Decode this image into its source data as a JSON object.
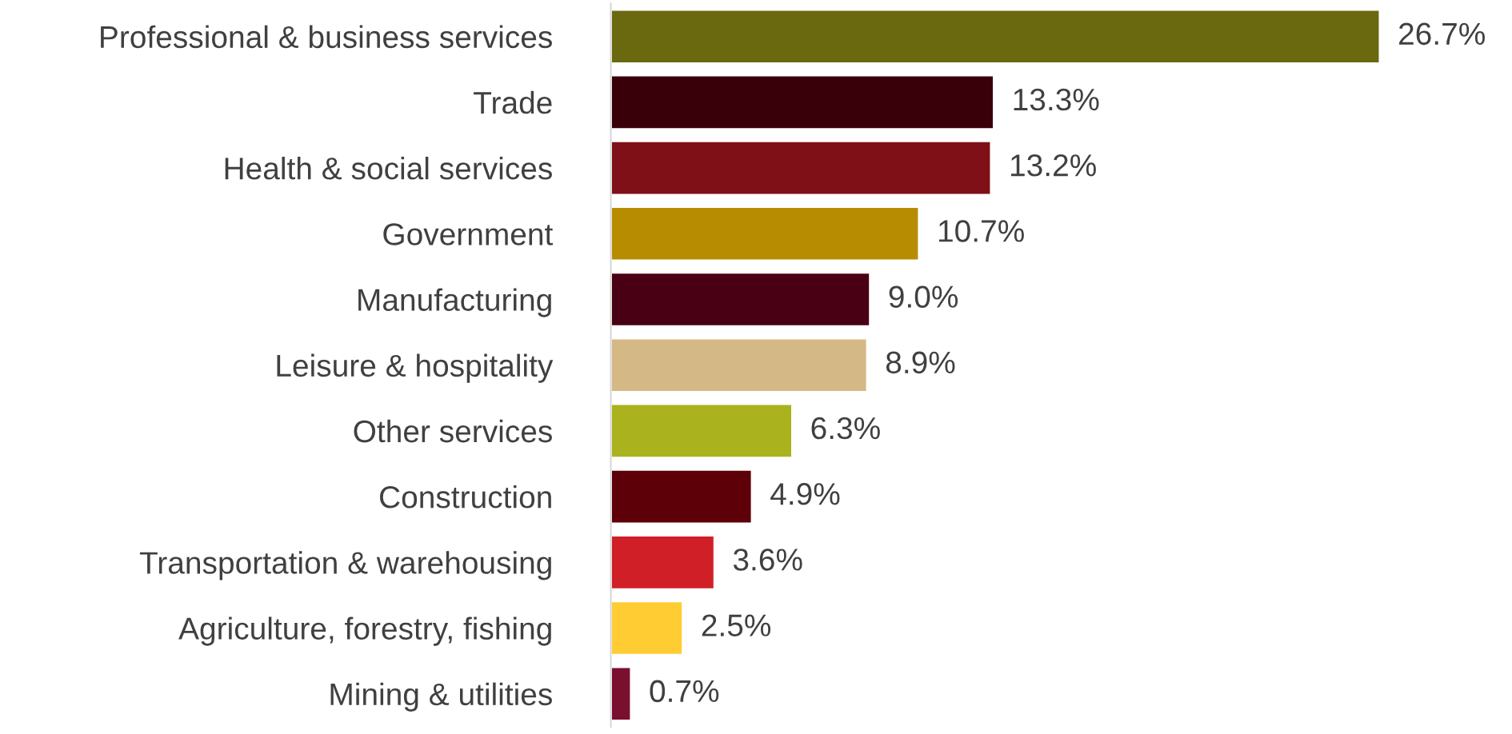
{
  "chart_data": {
    "type": "bar",
    "orientation": "horizontal",
    "categories": [
      "Professional & business services",
      "Trade",
      "Health & social services",
      "Government",
      "Manufacturing",
      "Leisure & hospitality",
      "Other services",
      "Construction",
      "Transportation & warehousing",
      "Agriculture, forestry, fishing",
      "Mining & utilities"
    ],
    "values": [
      26.7,
      13.3,
      13.2,
      10.7,
      9.0,
      8.9,
      6.3,
      4.9,
      3.6,
      2.5,
      0.7
    ],
    "value_labels": [
      "26.7%",
      "13.3%",
      "13.2%",
      "10.7%",
      "9.0%",
      "8.9%",
      "6.3%",
      "4.9%",
      "3.6%",
      "2.5%",
      "0.7%"
    ],
    "colors": [
      "#6b6910",
      "#3a0009",
      "#7f1018",
      "#b88c00",
      "#4a0014",
      "#d4b886",
      "#aab21e",
      "#5e0008",
      "#d01f26",
      "#ffcc33",
      "#7a1030"
    ],
    "grid": false,
    "legend": false
  }
}
